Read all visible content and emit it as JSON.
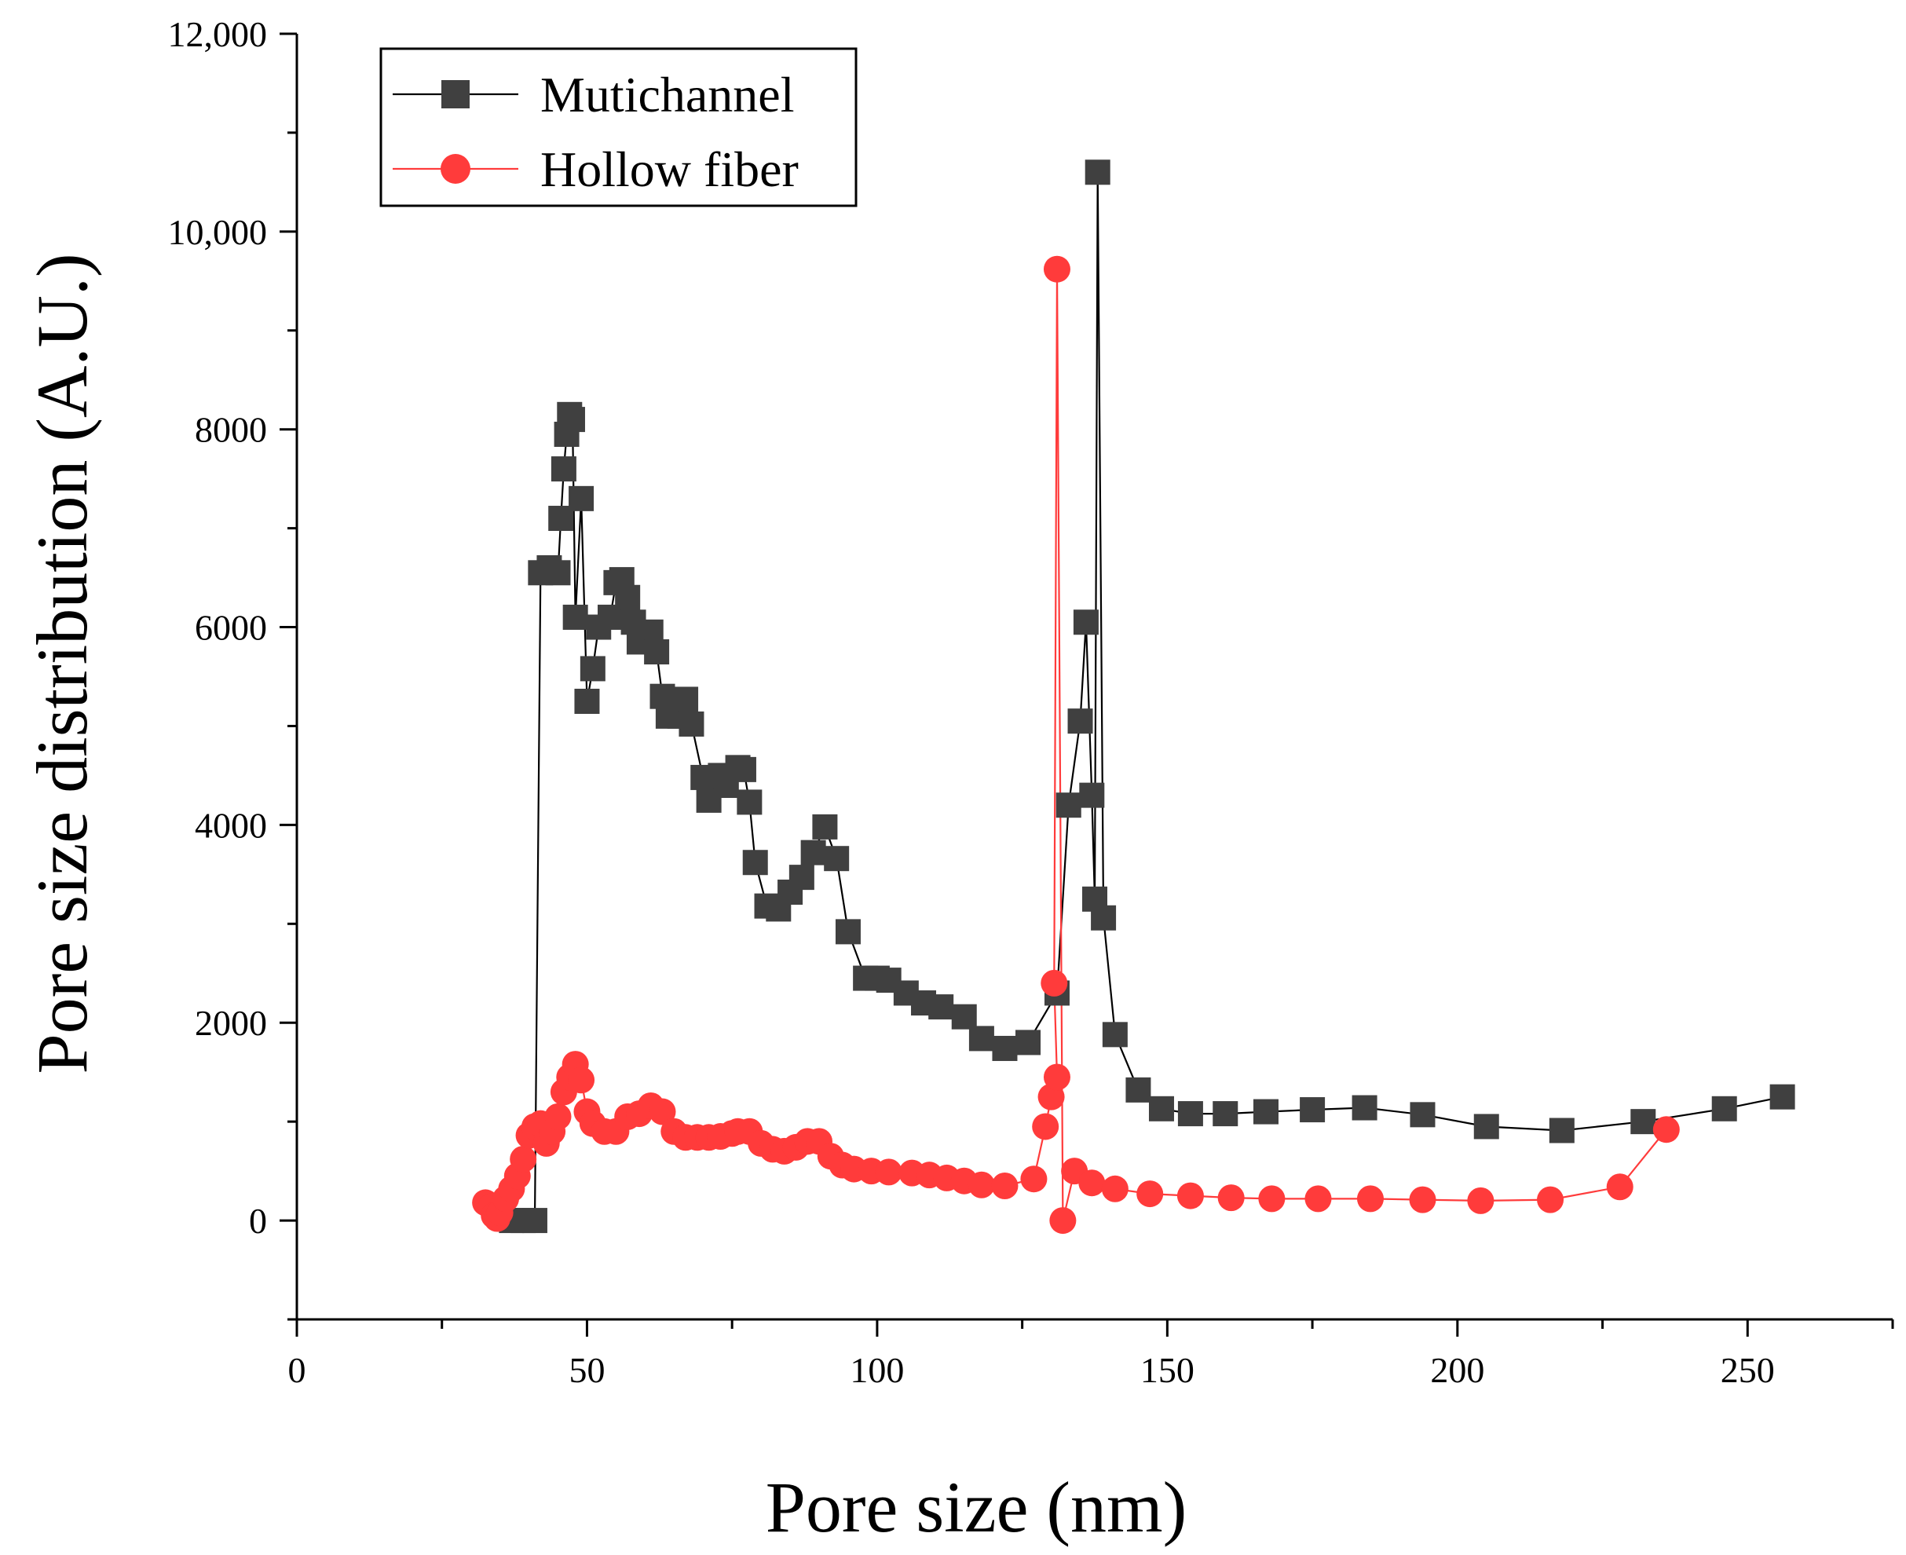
{
  "chart_data": {
    "type": "scatter",
    "title": "",
    "xlabel": "Pore size (nm)",
    "ylabel": "Pore size distribution (A.U.)",
    "xlim": [
      0,
      275
    ],
    "ylim": [
      -1000,
      12000
    ],
    "x_ticks": [
      0,
      50,
      100,
      150,
      200,
      250
    ],
    "x_tick_labels": [
      "0",
      "50",
      "100",
      "150",
      "200",
      "250"
    ],
    "y_ticks": [
      0,
      2000,
      4000,
      6000,
      8000,
      10000,
      12000
    ],
    "y_tick_labels": [
      "0",
      "2000",
      "4000",
      "6000",
      "8000",
      "10,000",
      "12,000"
    ],
    "grid": false,
    "legend_position": "top-left",
    "series": [
      {
        "name": "Mutichannel",
        "color": "#404040",
        "marker": "square",
        "points": [
          [
            37,
            0
          ],
          [
            39,
            0
          ],
          [
            41,
            0
          ],
          [
            42,
            6550
          ],
          [
            43.5,
            6600
          ],
          [
            45,
            6550
          ],
          [
            45.5,
            7100
          ],
          [
            46,
            7600
          ],
          [
            46.5,
            7950
          ],
          [
            47,
            8150
          ],
          [
            47.5,
            8100
          ],
          [
            48,
            6100
          ],
          [
            49,
            7300
          ],
          [
            50,
            5250
          ],
          [
            51,
            5580
          ],
          [
            52,
            6000
          ],
          [
            54,
            6100
          ],
          [
            55,
            6450
          ],
          [
            56,
            6480
          ],
          [
            57,
            6300
          ],
          [
            58,
            6050
          ],
          [
            59,
            5850
          ],
          [
            61,
            5950
          ],
          [
            62,
            5750
          ],
          [
            63,
            5300
          ],
          [
            64,
            5100
          ],
          [
            66,
            5100
          ],
          [
            67,
            5270
          ],
          [
            68,
            5020
          ],
          [
            70,
            4480
          ],
          [
            71,
            4250
          ],
          [
            73,
            4500
          ],
          [
            74,
            4400
          ],
          [
            76,
            4580
          ],
          [
            77,
            4560
          ],
          [
            78,
            4230
          ],
          [
            79,
            3620
          ],
          [
            81,
            3180
          ],
          [
            83,
            3150
          ],
          [
            85,
            3320
          ],
          [
            87,
            3470
          ],
          [
            89,
            3720
          ],
          [
            91,
            3980
          ],
          [
            93,
            3660
          ],
          [
            95,
            2920
          ],
          [
            98,
            2450
          ],
          [
            100,
            2450
          ],
          [
            102,
            2430
          ],
          [
            105,
            2300
          ],
          [
            108,
            2200
          ],
          [
            111,
            2160
          ],
          [
            115,
            2060
          ],
          [
            118,
            1840
          ],
          [
            122,
            1740
          ],
          [
            126,
            1800
          ],
          [
            131,
            2300
          ],
          [
            133,
            4200
          ],
          [
            135,
            5050
          ],
          [
            136,
            6050
          ],
          [
            137,
            4300
          ],
          [
            137.5,
            3250
          ],
          [
            138,
            10600
          ],
          [
            139,
            3060
          ],
          [
            141,
            1880
          ],
          [
            145,
            1320
          ],
          [
            149,
            1130
          ],
          [
            154,
            1080
          ],
          [
            160,
            1080
          ],
          [
            167,
            1100
          ],
          [
            175,
            1120
          ],
          [
            184,
            1140
          ],
          [
            194,
            1070
          ],
          [
            205,
            950
          ],
          [
            218,
            910
          ],
          [
            232,
            1000
          ],
          [
            246,
            1130
          ],
          [
            256,
            1250
          ]
        ]
      },
      {
        "name": "Hollow fiber",
        "color": "#ff3b3b",
        "marker": "circle",
        "points": [
          [
            32.5,
            180
          ],
          [
            33.5,
            140
          ],
          [
            34,
            50
          ],
          [
            34.5,
            20
          ],
          [
            35,
            80
          ],
          [
            36,
            220
          ],
          [
            37,
            320
          ],
          [
            38,
            450
          ],
          [
            39,
            620
          ],
          [
            40,
            860
          ],
          [
            41,
            950
          ],
          [
            42,
            980
          ],
          [
            43,
            780
          ],
          [
            44,
            900
          ],
          [
            45,
            1050
          ],
          [
            46,
            1300
          ],
          [
            47,
            1450
          ],
          [
            48,
            1580
          ],
          [
            49,
            1420
          ],
          [
            50,
            1100
          ],
          [
            51,
            980
          ],
          [
            53,
            900
          ],
          [
            55,
            900
          ],
          [
            57,
            1050
          ],
          [
            59,
            1080
          ],
          [
            61,
            1160
          ],
          [
            63,
            1100
          ],
          [
            65,
            900
          ],
          [
            67,
            840
          ],
          [
            69,
            840
          ],
          [
            71,
            840
          ],
          [
            73,
            850
          ],
          [
            75,
            880
          ],
          [
            76,
            900
          ],
          [
            78,
            900
          ],
          [
            80,
            780
          ],
          [
            82,
            720
          ],
          [
            84,
            700
          ],
          [
            86,
            740
          ],
          [
            88,
            800
          ],
          [
            90,
            800
          ],
          [
            92,
            650
          ],
          [
            94,
            560
          ],
          [
            96,
            520
          ],
          [
            99,
            500
          ],
          [
            102,
            490
          ],
          [
            106,
            480
          ],
          [
            109,
            460
          ],
          [
            112,
            430
          ],
          [
            115,
            400
          ],
          [
            118,
            360
          ],
          [
            122,
            350
          ],
          [
            127,
            420
          ],
          [
            129,
            950
          ],
          [
            130,
            1250
          ],
          [
            131,
            1450
          ],
          [
            130.5,
            2400
          ],
          [
            131,
            9620
          ],
          [
            132,
            0
          ],
          [
            134,
            500
          ],
          [
            137,
            380
          ],
          [
            141,
            320
          ],
          [
            147,
            270
          ],
          [
            154,
            250
          ],
          [
            161,
            230
          ],
          [
            168,
            220
          ],
          [
            176,
            220
          ],
          [
            185,
            220
          ],
          [
            194,
            210
          ],
          [
            204,
            200
          ],
          [
            216,
            210
          ],
          [
            228,
            340
          ],
          [
            236,
            920
          ]
        ]
      }
    ]
  }
}
